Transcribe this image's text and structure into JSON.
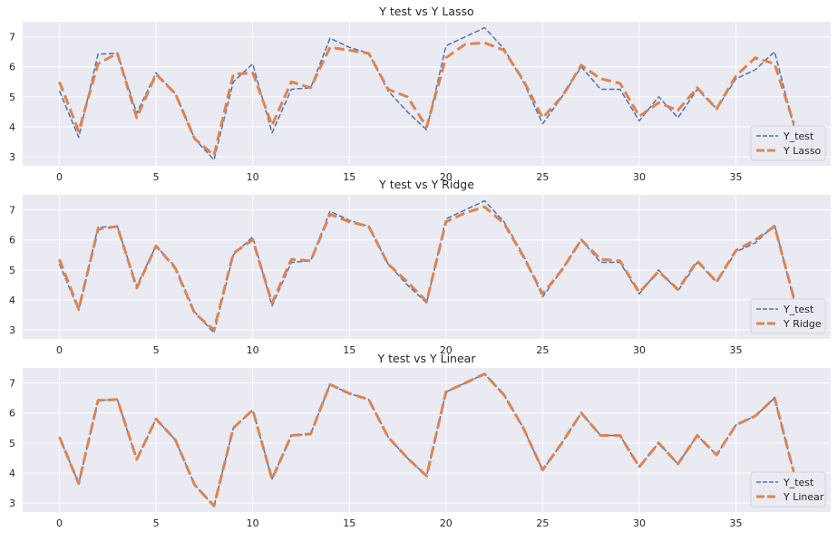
{
  "chart_data": [
    {
      "type": "line",
      "title": "Y test vs Y Lasso",
      "xlabel": "",
      "ylabel": "",
      "xlim": [
        -1.9,
        39.9
      ],
      "ylim": [
        2.7,
        7.5
      ],
      "xticks": [
        0,
        5,
        10,
        15,
        20,
        25,
        30,
        35
      ],
      "yticks": [
        3,
        4,
        5,
        6,
        7
      ],
      "grid": true,
      "legend_position": "lower-right",
      "series": [
        {
          "name": "Y_test",
          "color": "#4c72b0",
          "style": "dashed-thin",
          "x": [
            0,
            1,
            2,
            3,
            4,
            5,
            6,
            7,
            8,
            9,
            10,
            11,
            12,
            13,
            14,
            15,
            16,
            17,
            18,
            19,
            20,
            21,
            22,
            23,
            24,
            25,
            26,
            27,
            28,
            29,
            30,
            31,
            32,
            33,
            34,
            35,
            36,
            37,
            38
          ],
          "values": [
            5.2,
            3.65,
            6.42,
            6.45,
            4.45,
            5.8,
            5.1,
            3.6,
            2.9,
            5.5,
            6.1,
            3.8,
            5.25,
            5.3,
            6.95,
            6.65,
            6.45,
            5.2,
            4.5,
            3.9,
            6.7,
            7.0,
            7.3,
            6.6,
            5.5,
            4.1,
            5.0,
            6.0,
            5.25,
            5.25,
            4.2,
            5.0,
            4.3,
            5.25,
            4.6,
            5.6,
            5.9,
            6.5,
            4.0
          ]
        },
        {
          "name": "Y Lasso",
          "color": "#dd8452",
          "style": "dashed-thick",
          "x": [
            0,
            1,
            2,
            3,
            4,
            5,
            6,
            7,
            8,
            9,
            10,
            11,
            12,
            13,
            14,
            15,
            16,
            17,
            18,
            19,
            20,
            21,
            22,
            23,
            24,
            25,
            26,
            27,
            28,
            29,
            30,
            31,
            32,
            33,
            34,
            35,
            36,
            37,
            38
          ],
          "values": [
            5.5,
            3.85,
            6.1,
            6.45,
            4.3,
            5.75,
            5.1,
            3.6,
            3.05,
            5.75,
            5.8,
            4.05,
            5.5,
            5.3,
            6.65,
            6.55,
            6.45,
            5.25,
            5.0,
            4.0,
            6.3,
            6.75,
            6.8,
            6.55,
            5.55,
            4.3,
            5.0,
            6.05,
            5.6,
            5.45,
            4.35,
            4.8,
            4.55,
            5.3,
            4.6,
            5.7,
            6.3,
            6.1,
            4.1
          ]
        }
      ]
    },
    {
      "type": "line",
      "title": "Y test vs Y Ridge",
      "xlabel": "",
      "ylabel": "",
      "xlim": [
        -1.9,
        39.9
      ],
      "ylim": [
        2.7,
        7.5
      ],
      "xticks": [
        0,
        5,
        10,
        15,
        20,
        25,
        30,
        35
      ],
      "yticks": [
        3,
        4,
        5,
        6,
        7
      ],
      "grid": true,
      "legend_position": "lower-right",
      "series": [
        {
          "name": "Y_test",
          "color": "#4c72b0",
          "style": "dashed-thin",
          "x": [
            0,
            1,
            2,
            3,
            4,
            5,
            6,
            7,
            8,
            9,
            10,
            11,
            12,
            13,
            14,
            15,
            16,
            17,
            18,
            19,
            20,
            21,
            22,
            23,
            24,
            25,
            26,
            27,
            28,
            29,
            30,
            31,
            32,
            33,
            34,
            35,
            36,
            37,
            38
          ],
          "values": [
            5.2,
            3.65,
            6.42,
            6.45,
            4.45,
            5.8,
            5.1,
            3.6,
            2.9,
            5.5,
            6.1,
            3.8,
            5.25,
            5.3,
            6.95,
            6.65,
            6.45,
            5.2,
            4.5,
            3.9,
            6.7,
            7.0,
            7.3,
            6.6,
            5.5,
            4.1,
            5.0,
            6.0,
            5.25,
            5.25,
            4.2,
            5.0,
            4.3,
            5.25,
            4.6,
            5.6,
            5.9,
            6.5,
            4.0
          ]
        },
        {
          "name": "Y Ridge",
          "color": "#dd8452",
          "style": "dashed-thick",
          "x": [
            0,
            1,
            2,
            3,
            4,
            5,
            6,
            7,
            8,
            9,
            10,
            11,
            12,
            13,
            14,
            15,
            16,
            17,
            18,
            19,
            20,
            21,
            22,
            23,
            24,
            25,
            26,
            27,
            28,
            29,
            30,
            31,
            32,
            33,
            34,
            35,
            36,
            37,
            38
          ],
          "values": [
            5.35,
            3.7,
            6.35,
            6.45,
            4.4,
            5.8,
            5.05,
            3.55,
            3.0,
            5.55,
            6.0,
            3.9,
            5.35,
            5.3,
            6.85,
            6.6,
            6.45,
            5.2,
            4.6,
            3.95,
            6.6,
            6.9,
            7.1,
            6.55,
            5.45,
            4.2,
            5.0,
            6.0,
            5.35,
            5.3,
            4.25,
            4.95,
            4.35,
            5.3,
            4.6,
            5.65,
            6.0,
            6.45,
            4.05
          ]
        }
      ]
    },
    {
      "type": "line",
      "title": "Y test vs Y Linear",
      "xlabel": "",
      "ylabel": "",
      "xlim": [
        -1.9,
        39.9
      ],
      "ylim": [
        2.7,
        7.5
      ],
      "xticks": [
        0,
        5,
        10,
        15,
        20,
        25,
        30,
        35
      ],
      "yticks": [
        3,
        4,
        5,
        6,
        7
      ],
      "grid": true,
      "legend_position": "lower-right",
      "series": [
        {
          "name": "Y_test",
          "color": "#4c72b0",
          "style": "dashed-thin",
          "x": [
            0,
            1,
            2,
            3,
            4,
            5,
            6,
            7,
            8,
            9,
            10,
            11,
            12,
            13,
            14,
            15,
            16,
            17,
            18,
            19,
            20,
            21,
            22,
            23,
            24,
            25,
            26,
            27,
            28,
            29,
            30,
            31,
            32,
            33,
            34,
            35,
            36,
            37,
            38
          ],
          "values": [
            5.2,
            3.65,
            6.42,
            6.45,
            4.45,
            5.8,
            5.1,
            3.6,
            2.9,
            5.5,
            6.1,
            3.8,
            5.25,
            5.3,
            6.95,
            6.65,
            6.45,
            5.2,
            4.5,
            3.9,
            6.7,
            7.0,
            7.3,
            6.6,
            5.5,
            4.1,
            5.0,
            6.0,
            5.25,
            5.25,
            4.2,
            5.0,
            4.3,
            5.25,
            4.6,
            5.6,
            5.9,
            6.5,
            4.0
          ]
        },
        {
          "name": "Y Linear",
          "color": "#dd8452",
          "style": "dashed-thick",
          "x": [
            0,
            1,
            2,
            3,
            4,
            5,
            6,
            7,
            8,
            9,
            10,
            11,
            12,
            13,
            14,
            15,
            16,
            17,
            18,
            19,
            20,
            21,
            22,
            23,
            24,
            25,
            26,
            27,
            28,
            29,
            30,
            31,
            32,
            33,
            34,
            35,
            36,
            37,
            38
          ],
          "values": [
            5.2,
            3.65,
            6.42,
            6.45,
            4.45,
            5.8,
            5.1,
            3.6,
            2.9,
            5.5,
            6.1,
            3.8,
            5.25,
            5.3,
            6.95,
            6.65,
            6.45,
            5.2,
            4.5,
            3.9,
            6.7,
            7.0,
            7.3,
            6.6,
            5.5,
            4.1,
            5.0,
            6.0,
            5.25,
            5.25,
            4.2,
            5.0,
            4.3,
            5.25,
            4.6,
            5.6,
            5.9,
            6.5,
            4.0
          ]
        }
      ]
    }
  ],
  "colors": {
    "plot_background": "#eaeaf2",
    "grid": "#ffffff",
    "text": "#262626"
  }
}
